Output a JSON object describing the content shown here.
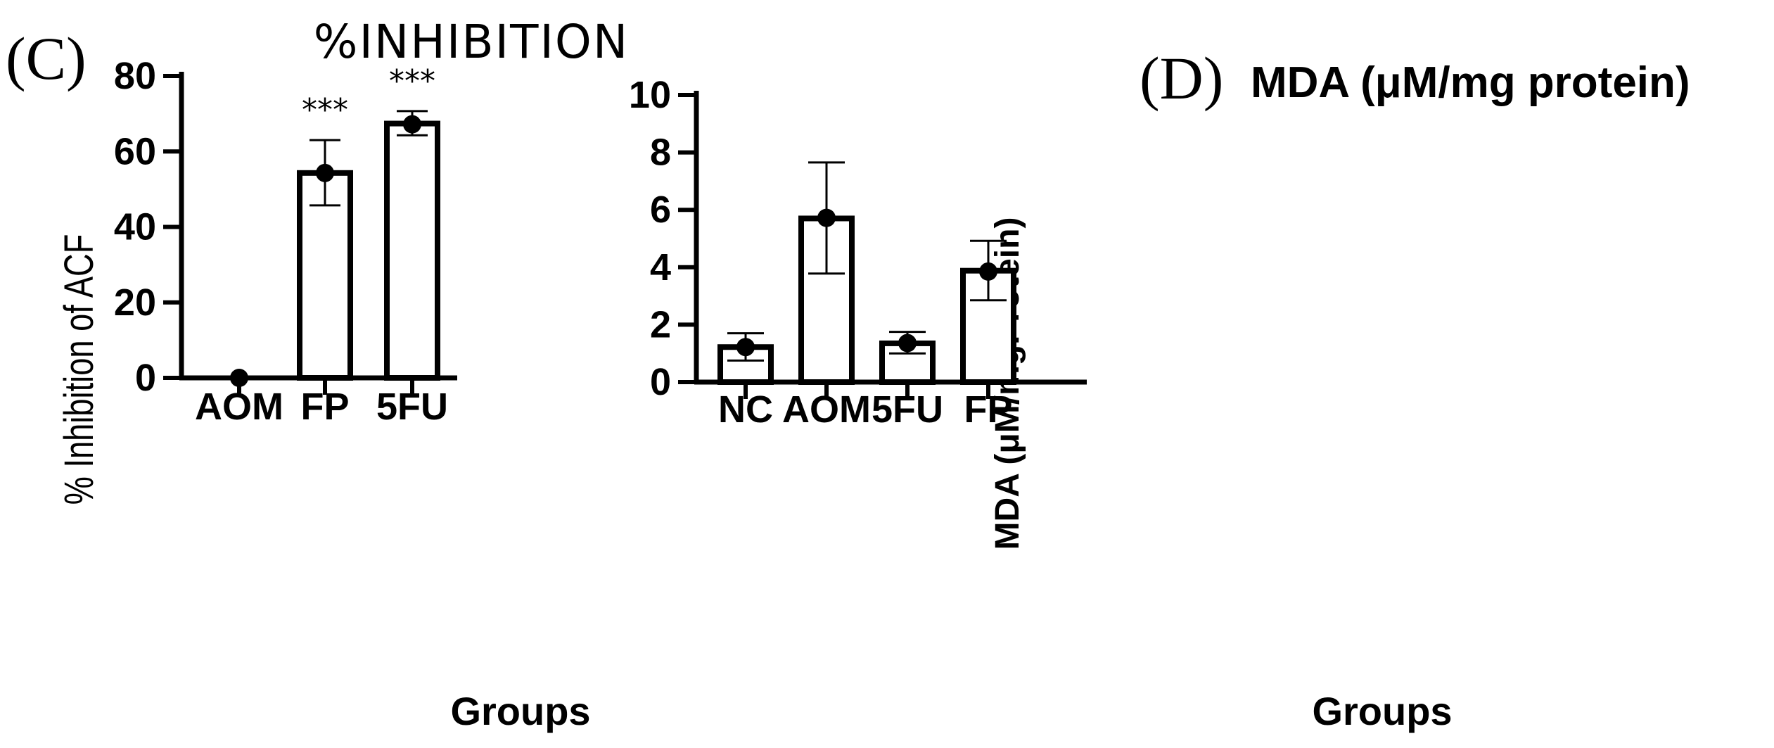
{
  "chart_data": [
    {
      "type": "bar",
      "panel": "(C)",
      "title": "%INHIBITION",
      "xlabel": "Groups",
      "ylabel": "% Inhibition of ACF",
      "categories": [
        "AOM",
        "FP",
        "5FU"
      ],
      "values": [
        0,
        54.3,
        67.4
      ],
      "points": [
        0,
        54.3,
        67.2
      ],
      "errors": [
        [
          0,
          0
        ],
        [
          45.7,
          63.0
        ],
        [
          64.3,
          70.7
        ]
      ],
      "significance": [
        "",
        "***",
        "***"
      ],
      "ylim": [
        0,
        80
      ],
      "yticks": [
        "0",
        "20",
        "40",
        "60",
        "80"
      ]
    },
    {
      "type": "bar",
      "panel": "(D)",
      "title": "MDA (μM/mg protein)",
      "xlabel": "Groups",
      "ylabel": "MDA (μM/mgProtein)",
      "categories": [
        "NC",
        "AOM",
        "5FU",
        "FP"
      ],
      "values": [
        1.22,
        5.7,
        1.35,
        3.88
      ],
      "points": [
        1.22,
        5.72,
        1.36,
        3.85
      ],
      "errors": [
        [
          0.75,
          1.7
        ],
        [
          3.78,
          7.65
        ],
        [
          1.0,
          1.75
        ],
        [
          2.85,
          4.92
        ]
      ],
      "ylim": [
        0,
        10
      ],
      "yticks": [
        "0",
        "2",
        "4",
        "6",
        "8",
        "10"
      ]
    }
  ]
}
